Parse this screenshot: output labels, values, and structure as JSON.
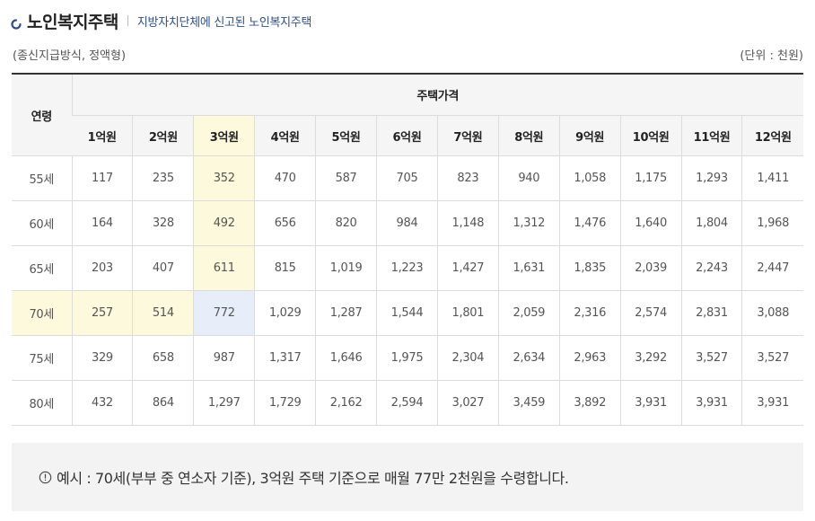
{
  "header": {
    "title": "노인복지주택",
    "subtitle": "지방자치단체에 신고된 노인복지주택",
    "icon": "ring-bullet-icon",
    "accent": "#2e4f8a"
  },
  "meta": {
    "left": "(종신지급방식, 정액형)",
    "right": "(단위 : 천원)"
  },
  "table": {
    "age_header": "연령",
    "price_header": "주택가격",
    "price_columns": [
      "1억원",
      "2억원",
      "3억원",
      "4억원",
      "5억원",
      "6억원",
      "7억원",
      "8억원",
      "9억원",
      "10억원",
      "11억원",
      "12억원"
    ],
    "rows": [
      {
        "age": "55세",
        "values": [
          "117",
          "235",
          "352",
          "470",
          "587",
          "705",
          "823",
          "940",
          "1,058",
          "1,175",
          "1,293",
          "1,411"
        ]
      },
      {
        "age": "60세",
        "values": [
          "164",
          "328",
          "492",
          "656",
          "820",
          "984",
          "1,148",
          "1,312",
          "1,476",
          "1,640",
          "1,804",
          "1,968"
        ]
      },
      {
        "age": "65세",
        "values": [
          "203",
          "407",
          "611",
          "815",
          "1,019",
          "1,223",
          "1,427",
          "1,631",
          "1,835",
          "2,039",
          "2,243",
          "2,447"
        ]
      },
      {
        "age": "70세",
        "values": [
          "257",
          "514",
          "772",
          "1,029",
          "1,287",
          "1,544",
          "1,801",
          "2,059",
          "2,316",
          "2,574",
          "2,831",
          "3,088"
        ]
      },
      {
        "age": "75세",
        "values": [
          "329",
          "658",
          "987",
          "1,317",
          "1,646",
          "1,975",
          "2,304",
          "2,634",
          "2,963",
          "3,292",
          "3,527",
          "3,527"
        ]
      },
      {
        "age": "80세",
        "values": [
          "432",
          "864",
          "1,297",
          "1,729",
          "2,162",
          "2,594",
          "3,027",
          "3,459",
          "3,892",
          "3,931",
          "3,931",
          "3,931"
        ]
      }
    ],
    "highlight": {
      "column_index": 2,
      "row_index": 3,
      "column_color": "#fdf9dc",
      "row_color": "#fdf9dc",
      "cell_color": "#e8eef9"
    }
  },
  "notice": {
    "icon": "info-circle-icon",
    "text": "예시 : 70세(부부 중 연소자 기준), 3억원 주택 기준으로 매월 77만 2천원을 수령합니다."
  }
}
